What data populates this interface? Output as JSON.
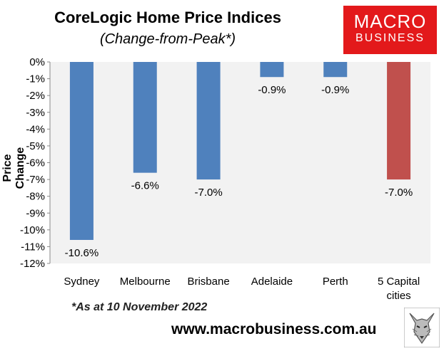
{
  "header": {
    "title": "CoreLogic Home Price Indices",
    "subtitle": "(Change-from-Peak*)"
  },
  "logo": {
    "line1": "MACRO",
    "line2": "BUSINESS"
  },
  "footer": {
    "note": "*As at 10 November 2022",
    "url": "www.macrobusiness.com.au"
  },
  "colors": {
    "bar": "#4f81bd",
    "highlight": "#c0504d",
    "plot_bg": "#f2f2f2"
  },
  "chart_data": {
    "type": "bar",
    "title": "CoreLogic Home Price Indices",
    "subtitle": "(Change-from-Peak*)",
    "ylabel": "Price Change",
    "xlabel": "",
    "categories": [
      "Sydney",
      "Melbourne",
      "Brisbane",
      "Adelaide",
      "Perth",
      "5 Capital cities"
    ],
    "category_lines": [
      [
        "Sydney"
      ],
      [
        "Melbourne"
      ],
      [
        "Brisbane"
      ],
      [
        "Adelaide"
      ],
      [
        "Perth"
      ],
      [
        "5 Capital",
        "cities"
      ]
    ],
    "values": [
      -10.6,
      -6.6,
      -7.0,
      -0.9,
      -0.9,
      -7.0
    ],
    "data_labels": [
      "-10.6%",
      "-6.6%",
      "-7.0%",
      "-0.9%",
      "-0.9%",
      "-7.0%"
    ],
    "highlight_index": 5,
    "ylim": [
      -12,
      0
    ],
    "yticks": [
      0,
      -1,
      -2,
      -3,
      -4,
      -5,
      -6,
      -7,
      -8,
      -9,
      -10,
      -11,
      -12
    ],
    "ytick_labels": [
      "0%",
      "-1%",
      "-2%",
      "-3%",
      "-4%",
      "-5%",
      "-6%",
      "-7%",
      "-8%",
      "-9%",
      "-10%",
      "-11%",
      "-12%"
    ],
    "grid": false,
    "legend": "none"
  }
}
